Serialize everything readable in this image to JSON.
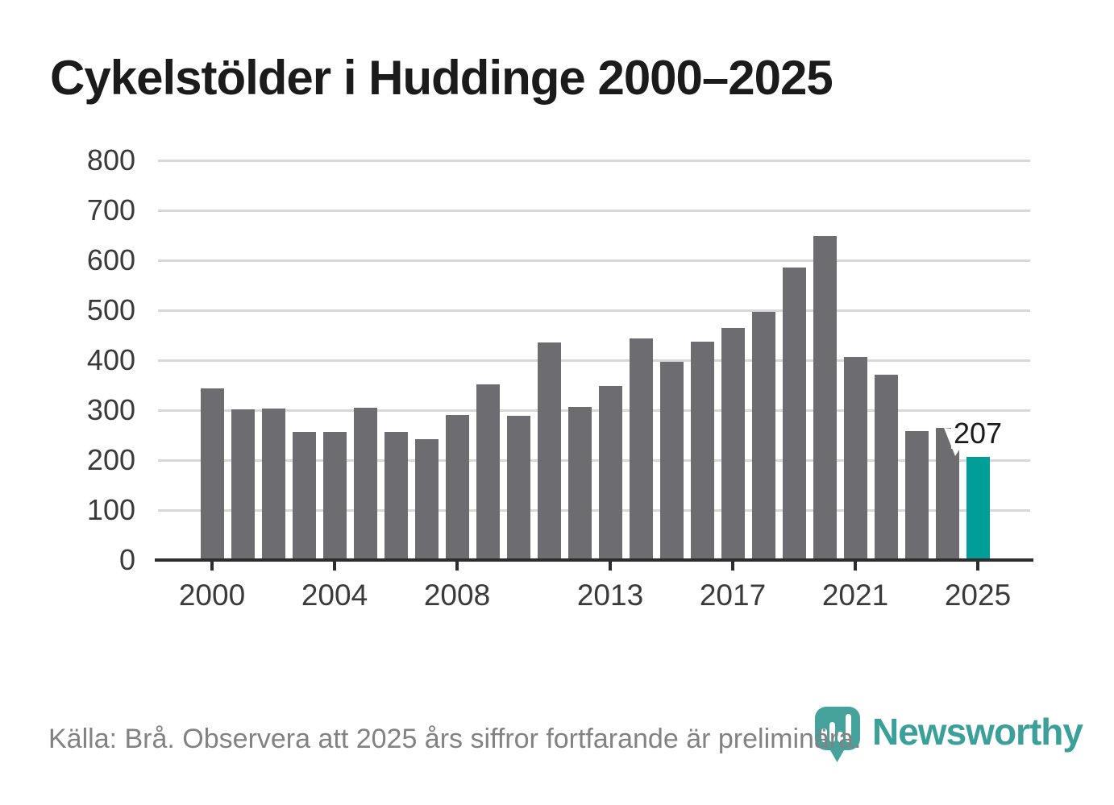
{
  "title": "Cykelstölder i Huddinge 2000–2025",
  "footer": {
    "source_text": "Källa: Brå. Observera att 2025 års siffror fortfarande är preliminära."
  },
  "branding": {
    "logo_text": "Newsworthy",
    "logo_icon": "newsworthy-pin-barchart-icon"
  },
  "colors": {
    "title_text": "#1b1b1b",
    "bar": "#6c6c71",
    "highlight": "#009e97",
    "grid": "#d8d8d8",
    "axis": "#2d2d2d",
    "tick_text": "#3a3a3a",
    "footer_text": "#828282",
    "brand": "#3aa099"
  },
  "annotation": {
    "value_label": "207"
  },
  "chart_data": {
    "type": "bar",
    "title": "Cykelstölder i Huddinge 2000–2025",
    "xlabel": "",
    "ylabel": "",
    "x": [
      2000,
      2001,
      2002,
      2003,
      2004,
      2005,
      2006,
      2007,
      2008,
      2009,
      2010,
      2011,
      2012,
      2013,
      2014,
      2015,
      2016,
      2017,
      2018,
      2019,
      2020,
      2021,
      2022,
      2023,
      2024,
      2025
    ],
    "values": [
      344,
      302,
      303,
      256,
      256,
      305,
      256,
      242,
      290,
      352,
      288,
      435,
      306,
      349,
      444,
      396,
      437,
      465,
      496,
      586,
      649,
      406,
      371,
      258,
      264,
      207
    ],
    "highlight_index": 25,
    "highlight_annotation": "207",
    "x_tick_labels": [
      "2000",
      "2004",
      "2008",
      "2013",
      "2017",
      "2021",
      "2025"
    ],
    "y_ticks": [
      0,
      100,
      200,
      300,
      400,
      500,
      600,
      700,
      800
    ],
    "ylim": [
      0,
      800
    ],
    "grid": true,
    "legend": false
  }
}
